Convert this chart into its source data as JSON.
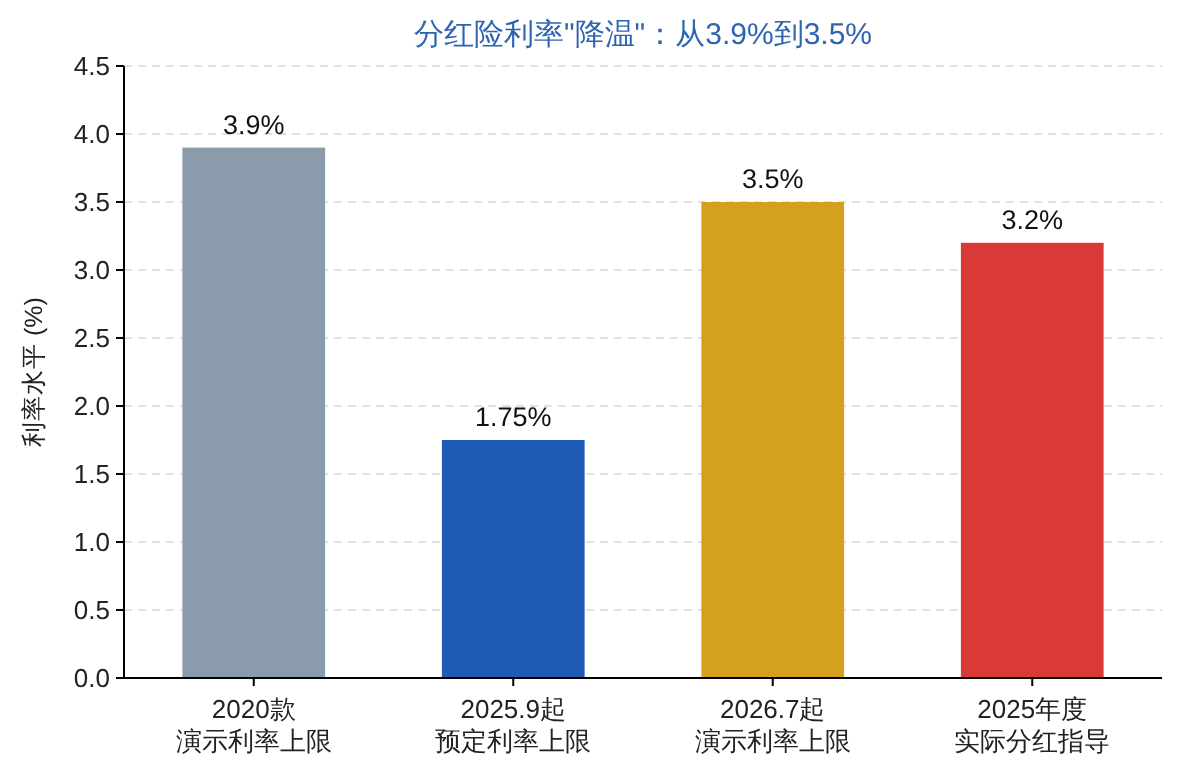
{
  "chart_data": {
    "type": "bar",
    "title": "分红险利率\"降温\"：从3.9%到3.5%",
    "ylabel": "利率水平 (%)",
    "categories": [
      "2020款演示利率上限",
      "2025.9起预定利率上限",
      "2026.7起演示利率上限",
      "2025年度实际分红指导"
    ],
    "values": [
      3.9,
      1.75,
      3.5,
      3.2
    ],
    "colors": [
      "#8a9bab",
      "#1f5bb5",
      "#d4a11e",
      "#d93a36"
    ],
    "value_labels": [
      "3.9%",
      "1.75%",
      "3.5%",
      "3.2%"
    ],
    "ylim": [
      0,
      4.5
    ],
    "yticks": [
      {
        "value": 0,
        "label": "0.0"
      },
      0.5,
      {
        "value": 1,
        "label": "1.0"
      },
      1.5,
      {
        "value": 2,
        "label": "2.0"
      },
      2.5,
      {
        "value": 3,
        "label": "3.0"
      },
      3.5,
      {
        "value": 4,
        "label": "4.0"
      },
      4.5
    ],
    "grid": "y"
  }
}
